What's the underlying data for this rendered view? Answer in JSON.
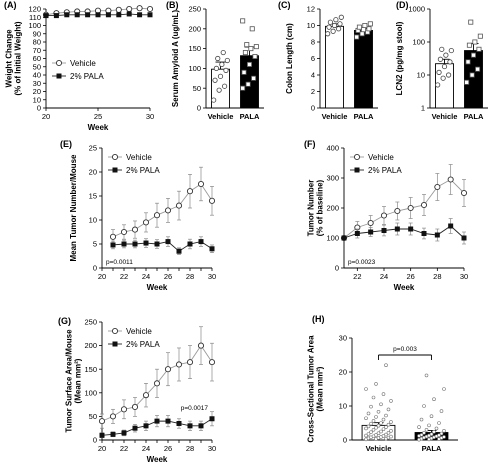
{
  "chart_data": [
    {
      "panel": "(A)",
      "type": "line",
      "xlabel": "Week",
      "ylabel": "Weight Change\n(% of Initial Weight)",
      "xlim": [
        20,
        30
      ],
      "ylim": [
        0,
        120
      ],
      "xticks": [
        20,
        25,
        30
      ],
      "yticks": [
        0,
        10,
        20,
        30,
        40,
        50,
        60,
        70,
        80,
        90,
        100,
        110,
        120
      ],
      "legend": "bottom-left",
      "series": [
        {
          "name": "Vehicle",
          "marker": "open-circle",
          "x": [
            20,
            21,
            22,
            23,
            24,
            25,
            26,
            27,
            28,
            29,
            30
          ],
          "y": [
            113,
            115,
            116,
            117,
            117,
            118,
            118,
            119,
            120,
            121,
            120
          ]
        },
        {
          "name": "2% PALA",
          "marker": "filled-square",
          "x": [
            20,
            21,
            22,
            23,
            24,
            25,
            26,
            27,
            28,
            29,
            30
          ],
          "y": [
            112,
            112,
            113,
            113,
            113,
            113,
            113,
            113,
            114,
            113,
            113
          ]
        }
      ]
    },
    {
      "panel": "(B)",
      "type": "bar",
      "ylabel": "Serum Amyloid A (ug/mL)",
      "categories": [
        "Vehicle",
        "PALA"
      ],
      "values": [
        98,
        132
      ],
      "errors": [
        18,
        22
      ],
      "ylim": [
        0,
        250
      ],
      "yticks": [
        0,
        50,
        100,
        150,
        200,
        250
      ],
      "points": [
        [
          20,
          45,
          55,
          70,
          80,
          95,
          100,
          110,
          120,
          125,
          140
        ],
        [
          50,
          60,
          75,
          90,
          110,
          130,
          140,
          150,
          155,
          160,
          200,
          220
        ]
      ]
    },
    {
      "panel": "(C)",
      "type": "bar",
      "ylabel": "Colon Length (cm)",
      "categories": [
        "Vehicle",
        "PALA"
      ],
      "values": [
        9.9,
        9.4
      ],
      "errors": [
        0.3,
        0.25
      ],
      "ylim": [
        0,
        12
      ],
      "yticks": [
        0,
        2,
        4,
        6,
        8,
        10,
        12
      ],
      "points": [
        [
          9.0,
          9.3,
          9.6,
          9.8,
          10.0,
          10.2,
          10.4,
          10.7,
          11.0
        ],
        [
          8.6,
          9.0,
          9.2,
          9.4,
          9.5,
          9.6,
          9.8,
          10.0,
          10.2
        ]
      ]
    },
    {
      "panel": "(D)",
      "type": "bar",
      "yscale": "log",
      "ylabel": "LCN2 (pg/mg stool)",
      "categories": [
        "Vehicle",
        "PALA"
      ],
      "values": [
        22,
        55
      ],
      "errors": [
        8,
        35
      ],
      "ylim": [
        1,
        1000
      ],
      "yticks": [
        1,
        10,
        100,
        1000
      ],
      "points": [
        [
          5,
          8,
          10,
          12,
          18,
          25,
          30,
          40,
          55,
          60
        ],
        [
          6,
          10,
          15,
          25,
          40,
          60,
          80,
          100,
          150,
          400
        ]
      ]
    },
    {
      "panel": "(E)",
      "type": "line",
      "xlabel": "Week",
      "ylabel": "Mean Tumor Number/Mouse",
      "xlim": [
        20,
        30
      ],
      "ylim": [
        0,
        25
      ],
      "xticks": [
        20,
        21,
        22,
        23,
        24,
        25,
        26,
        27,
        28,
        29,
        30
      ],
      "xticklabels": [
        "20",
        "22",
        "24",
        "26",
        "28",
        "30"
      ],
      "yticks": [
        0,
        5,
        10,
        15,
        20,
        25
      ],
      "annotation": "p=0.0011",
      "legend": "top-left",
      "series": [
        {
          "name": "Vehicle",
          "marker": "open-circle",
          "x": [
            21,
            22,
            23,
            24,
            25,
            26,
            27,
            28,
            29,
            30
          ],
          "y": [
            6.5,
            7.5,
            8.0,
            9.5,
            11.0,
            12.0,
            13.0,
            16.0,
            17.5,
            14.0
          ],
          "err": [
            1.5,
            1.5,
            1.8,
            2.0,
            2.5,
            2.5,
            3.0,
            3.5,
            3.5,
            3.0
          ]
        },
        {
          "name": "2% PALA",
          "marker": "filled-square",
          "x": [
            21,
            22,
            23,
            24,
            25,
            26,
            27,
            28,
            29,
            30
          ],
          "y": [
            4.8,
            5.0,
            5.0,
            5.2,
            5.0,
            5.5,
            3.5,
            5.0,
            5.5,
            4.0
          ],
          "err": [
            0.8,
            0.8,
            0.8,
            0.9,
            0.9,
            1.0,
            0.7,
            1.0,
            1.0,
            0.8
          ]
        }
      ]
    },
    {
      "panel": "(F)",
      "type": "line",
      "xlabel": "Week",
      "ylabel": "Tumor Number\n(% of baseline)",
      "xlim": [
        21,
        30
      ],
      "ylim": [
        0,
        400
      ],
      "xticks": [
        22,
        24,
        26,
        28,
        30
      ],
      "yticks": [
        0,
        100,
        200,
        300,
        400
      ],
      "annotation": "p=0.0023",
      "legend": "top-left",
      "series": [
        {
          "name": "Vehicle",
          "marker": "open-circle",
          "x": [
            21,
            22,
            23,
            24,
            25,
            26,
            27,
            28,
            29,
            30
          ],
          "y": [
            100,
            135,
            150,
            175,
            190,
            200,
            210,
            270,
            295,
            250
          ],
          "err": [
            0,
            20,
            25,
            30,
            30,
            35,
            35,
            45,
            50,
            45
          ]
        },
        {
          "name": "2% PALA",
          "marker": "filled-square",
          "x": [
            21,
            22,
            23,
            24,
            25,
            26,
            27,
            28,
            29,
            30
          ],
          "y": [
            100,
            115,
            120,
            125,
            130,
            130,
            115,
            110,
            140,
            100
          ],
          "err": [
            0,
            15,
            15,
            18,
            20,
            20,
            18,
            20,
            25,
            20
          ]
        }
      ]
    },
    {
      "panel": "(G)",
      "type": "line",
      "xlabel": "Week",
      "ylabel": "Tumor Surface Area/Mouse\n(Mean mm²)",
      "xlim": [
        20,
        30
      ],
      "ylim": [
        0,
        250
      ],
      "xticks": [
        20,
        21,
        22,
        23,
        24,
        25,
        26,
        27,
        28,
        29,
        30
      ],
      "xticklabels": [
        "20",
        "22",
        "24",
        "26",
        "28",
        "30"
      ],
      "yticks": [
        0,
        50,
        100,
        150,
        200,
        250
      ],
      "annotation": "p=0.0017",
      "legend": "top-left",
      "series": [
        {
          "name": "Vehicle",
          "marker": "open-circle",
          "x": [
            20,
            21,
            22,
            23,
            24,
            25,
            26,
            27,
            28,
            29,
            30
          ],
          "y": [
            40,
            50,
            65,
            70,
            95,
            120,
            150,
            160,
            165,
            200,
            165
          ],
          "err": [
            15,
            15,
            20,
            20,
            25,
            30,
            35,
            35,
            35,
            40,
            40
          ]
        },
        {
          "name": "2% PALA",
          "marker": "filled-square",
          "x": [
            20,
            21,
            22,
            23,
            24,
            25,
            26,
            27,
            28,
            29,
            30
          ],
          "y": [
            10,
            12,
            15,
            25,
            30,
            40,
            40,
            35,
            30,
            30,
            45
          ],
          "err": [
            5,
            5,
            6,
            8,
            10,
            12,
            12,
            10,
            10,
            10,
            15
          ]
        }
      ]
    },
    {
      "panel": "(H)",
      "type": "bar",
      "ylabel": "Cross-Sectional Tumor Area\n(Mean mm²)",
      "categories": [
        "Vehicle",
        "PALA"
      ],
      "values": [
        4.3,
        2.2
      ],
      "errors": [
        0.8,
        0.6
      ],
      "ylim": [
        0,
        30
      ],
      "yticks": [
        0,
        10,
        20,
        30
      ],
      "annotation": "p=0.003",
      "points": [
        [
          0.2,
          0.3,
          0.4,
          0.5,
          0.6,
          0.7,
          0.8,
          0.9,
          1.0,
          1.1,
          1.2,
          1.3,
          1.5,
          1.6,
          1.8,
          2.0,
          2.1,
          2.3,
          2.5,
          2.7,
          3.0,
          3.2,
          3.4,
          3.6,
          3.8,
          4.0,
          4.2,
          4.5,
          4.8,
          5.0,
          5.3,
          5.6,
          6.0,
          6.4,
          6.8,
          7.2,
          7.8,
          8.3,
          9.0,
          9.8,
          10.5,
          11.5,
          12.5,
          13.5,
          15.0,
          16.5,
          22.0
        ],
        [
          0.1,
          0.2,
          0.3,
          0.4,
          0.5,
          0.6,
          0.7,
          0.8,
          0.9,
          1.0,
          1.1,
          1.2,
          1.3,
          1.4,
          1.5,
          1.7,
          1.9,
          2.1,
          2.4,
          2.7,
          3.0,
          3.4,
          3.8,
          4.3,
          5.0,
          6.0,
          7.0,
          8.5,
          10.0,
          12.0,
          15.0,
          19.0
        ]
      ]
    }
  ]
}
